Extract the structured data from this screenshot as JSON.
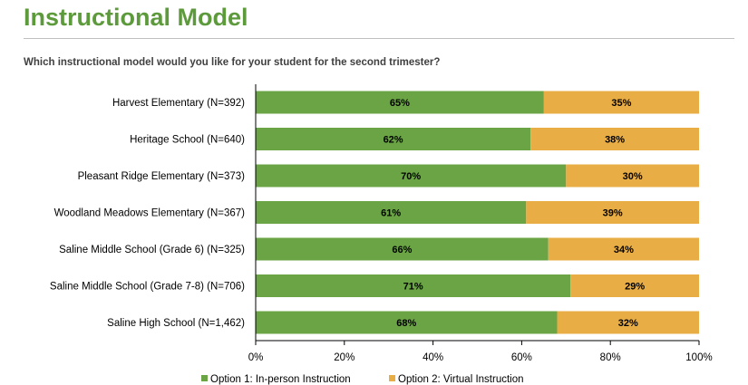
{
  "header": {
    "title": "Instructional Model",
    "question": "Which instructional model would you like for your student for the second trimester?"
  },
  "colors": {
    "title": "#5c9a3c",
    "option1": "#6aa444",
    "option2": "#e8ad45"
  },
  "chart_data": {
    "type": "bar",
    "orientation": "horizontal",
    "stacked": true,
    "categories": [
      "Harvest Elementary (N=392)",
      "Heritage School (N=640)",
      "Pleasant Ridge Elementary (N=373)",
      "Woodland Meadows Elementary (N=367)",
      "Saline Middle School (Grade 6) (N=325)",
      "Saline Middle School (Grade 7-8) (N=706)",
      "Saline High School (N=1,462)"
    ],
    "series": [
      {
        "name": "Option 1: In-person Instruction",
        "values": [
          65,
          62,
          70,
          61,
          66,
          71,
          68
        ],
        "labels": [
          "65%",
          "62%",
          "70%",
          "61%",
          "66%",
          "71%",
          "68%"
        ]
      },
      {
        "name": "Option 2: Virtual Instruction",
        "values": [
          35,
          38,
          30,
          39,
          34,
          29,
          32
        ],
        "labels": [
          "35%",
          "38%",
          "30%",
          "39%",
          "34%",
          "29%",
          "32%"
        ]
      }
    ],
    "xlim": [
      0,
      100
    ],
    "xticks": [
      "0%",
      "20%",
      "40%",
      "60%",
      "80%",
      "100%"
    ],
    "legend_position": "bottom",
    "grid": false
  }
}
